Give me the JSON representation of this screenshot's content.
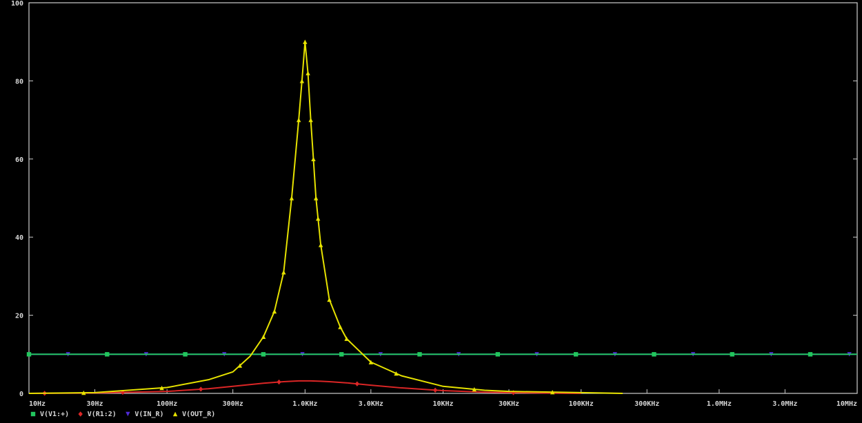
{
  "chart_data": {
    "type": "line",
    "x_scale": "log",
    "xlim": [
      10,
      10000000
    ],
    "ylim": [
      0,
      100
    ],
    "grid": false,
    "legend_position": "bottom-left",
    "y_ticks": [
      0,
      20,
      40,
      60,
      80,
      100
    ],
    "y_tick_labels": [
      "0",
      "20",
      "40",
      "60",
      "80",
      "100"
    ],
    "x_ticks": [
      10,
      30,
      100,
      300,
      1000,
      3000,
      10000,
      30000,
      100000,
      300000,
      1000000,
      3000000,
      10000000
    ],
    "x_tick_labels": [
      "10Hz",
      "30Hz",
      "100Hz",
      "300Hz",
      "1.0KHz",
      "3.0KHz",
      "10KHz",
      "30KHz",
      "100KHz",
      "300KHz",
      "1.0MHz",
      "3.0MHz",
      "10MHz"
    ],
    "series": [
      {
        "name": "V(V1:+)",
        "color": "#22c55e",
        "marker": "square",
        "x": [
          10,
          10000000
        ],
        "y": [
          10,
          10
        ]
      },
      {
        "name": "V(R1:2)",
        "color": "#dc2626",
        "marker": "diamond",
        "x": [
          10,
          30,
          100,
          200,
          300,
          500,
          700,
          900,
          1100,
          1300,
          1500,
          2000,
          3000,
          5000,
          10000,
          20000,
          30000,
          50000,
          70000,
          100000
        ],
        "y": [
          0.0,
          0.1,
          0.5,
          1.2,
          1.8,
          2.6,
          3.0,
          3.2,
          3.2,
          3.1,
          3.0,
          2.7,
          2.1,
          1.4,
          0.7,
          0.3,
          0.2,
          0.1,
          0.05,
          0.0
        ]
      },
      {
        "name": "V(IN_R)",
        "color": "#4f2bd4",
        "marker": "triangle-down",
        "x": [
          10,
          10000000
        ],
        "y": [
          10,
          10
        ]
      },
      {
        "name": "V(OUT_R)",
        "color": "#e6e200",
        "marker": "triangle-up",
        "x": [
          10,
          30,
          100,
          200,
          300,
          400,
          500,
          600,
          700,
          800,
          900,
          950,
          1000,
          1050,
          1100,
          1150,
          1200,
          1300,
          1500,
          1800,
          2000,
          3000,
          5000,
          10000,
          20000,
          30000,
          100000,
          200000
        ],
        "y": [
          0.0,
          0.2,
          1.5,
          3.5,
          5.5,
          9.5,
          14.5,
          21,
          31,
          50,
          70,
          80,
          90,
          82,
          70,
          60,
          50,
          38,
          24,
          17,
          14,
          8,
          4.5,
          1.8,
          0.8,
          0.5,
          0.2,
          0.0
        ]
      }
    ]
  }
}
